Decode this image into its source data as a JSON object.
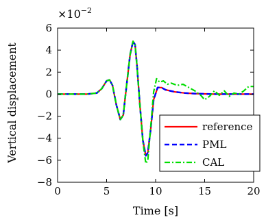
{
  "chart_data": {
    "type": "line",
    "title": "",
    "xlabel": "Time [s]",
    "ylabel": "Vertical displacement",
    "y_scale_label": "×10",
    "y_scale_exponent": "−2",
    "xlim": [
      0,
      20
    ],
    "ylim": [
      -8,
      6
    ],
    "x_ticks": [
      0,
      5,
      10,
      15,
      20
    ],
    "x_tick_labels": [
      "0",
      "5",
      "10",
      "15",
      "20"
    ],
    "y_ticks": [
      -8,
      -6,
      -4,
      -2,
      0,
      2,
      4,
      6
    ],
    "y_tick_labels": [
      "−8",
      "−6",
      "−4",
      "−2",
      "0",
      "2",
      "4",
      "6"
    ],
    "grid": false,
    "legend_position": "bottom-right",
    "series": [
      {
        "name": "reference",
        "color": "#ff0000",
        "style": "solid",
        "x": [
          0,
          3,
          4,
          4.5,
          5.0,
          5.3,
          5.6,
          6.0,
          6.4,
          6.7,
          7.0,
          7.4,
          7.7,
          7.9,
          8.1,
          8.4,
          8.7,
          9.0,
          9.2,
          9.5,
          9.8,
          10.2,
          10.6,
          11.0,
          12.0,
          13.0,
          14.0,
          16.0,
          18.0,
          20.0
        ],
        "y": [
          0,
          0,
          0.1,
          0.5,
          1.2,
          1.3,
          0.8,
          -1.0,
          -2.3,
          -1.9,
          0.5,
          3.6,
          4.8,
          4.5,
          2.6,
          -1.0,
          -4.2,
          -5.6,
          -5.3,
          -3.2,
          -0.5,
          0.6,
          0.6,
          0.4,
          0.2,
          0.1,
          0.05,
          0.0,
          0.0,
          0.0
        ]
      },
      {
        "name": "PML",
        "color": "#0000ff",
        "style": "dashed",
        "x": [
          0,
          3,
          4,
          4.5,
          5.0,
          5.3,
          5.6,
          6.0,
          6.4,
          6.7,
          7.0,
          7.4,
          7.7,
          7.9,
          8.1,
          8.4,
          8.7,
          9.0,
          9.2,
          9.5,
          9.8,
          10.2,
          10.6,
          11.0,
          12.0,
          13.0,
          14.0,
          16.0,
          18.0,
          20.0
        ],
        "y": [
          0,
          0,
          0.1,
          0.5,
          1.2,
          1.3,
          0.8,
          -1.0,
          -2.3,
          -1.9,
          0.5,
          3.6,
          4.8,
          4.5,
          2.6,
          -1.0,
          -4.2,
          -5.6,
          -5.3,
          -3.2,
          -0.5,
          0.6,
          0.6,
          0.4,
          0.2,
          0.1,
          0.05,
          0.0,
          0.0,
          0.0
        ]
      },
      {
        "name": "CAL",
        "color": "#00dd00",
        "style": "dashdot",
        "x": [
          0,
          3,
          4,
          4.5,
          5.0,
          5.3,
          5.6,
          6.0,
          6.4,
          6.7,
          7.0,
          7.4,
          7.7,
          7.9,
          8.1,
          8.4,
          8.7,
          9.0,
          9.2,
          9.5,
          9.8,
          10.1,
          10.4,
          10.8,
          11.2,
          11.6,
          12.2,
          12.8,
          13.4,
          14.0,
          14.6,
          15.0,
          15.5,
          16.0,
          16.5,
          17.0,
          17.5,
          18.0,
          18.5,
          19.0,
          19.5,
          20.0
        ],
        "y": [
          0,
          0,
          0.1,
          0.5,
          1.2,
          1.3,
          0.8,
          -1.0,
          -2.3,
          -1.9,
          0.5,
          3.6,
          4.8,
          4.5,
          2.6,
          -1.0,
          -4.3,
          -6.3,
          -6.0,
          -3.0,
          0.2,
          1.4,
          1.1,
          1.2,
          0.9,
          1.0,
          0.8,
          0.9,
          0.6,
          0.3,
          -0.1,
          -0.5,
          -0.2,
          0.3,
          -0.1,
          0.3,
          -0.2,
          0.1,
          0.0,
          0.3,
          0.7,
          0.7
        ]
      }
    ]
  }
}
